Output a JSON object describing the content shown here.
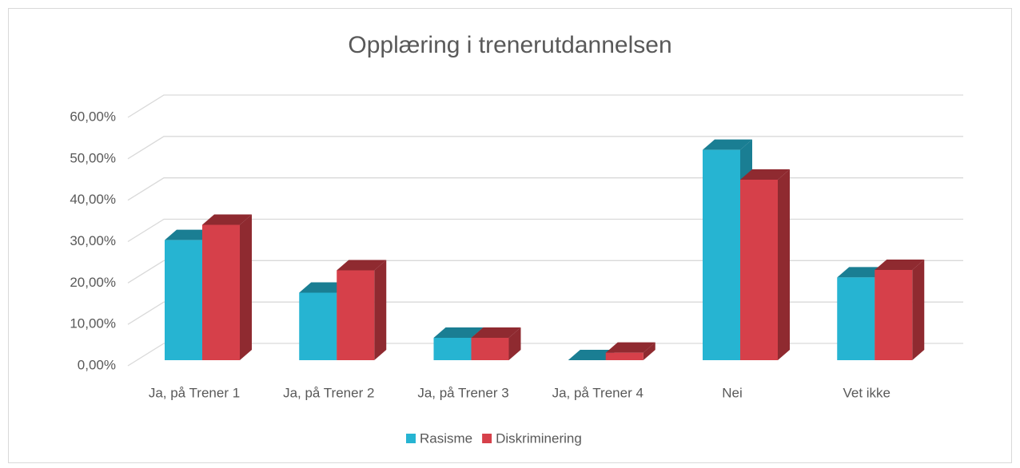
{
  "chart_data": {
    "type": "bar3d",
    "title": "Opplæring i trenerutdannelsen",
    "categories": [
      "Ja, på Trener 1",
      "Ja, på Trener 2",
      "Ja, på Trener 3",
      "Ja, på Trener 4",
      "Nei",
      "Vet ikke"
    ],
    "series": [
      {
        "name": "Rasisme",
        "color": "#26b4d2",
        "side_color": "#1a7e93",
        "values": [
          29,
          16.3,
          5.4,
          0,
          50.8,
          20
        ]
      },
      {
        "name": "Diskriminering",
        "color": "#d6404a",
        "side_color": "#8f2a30",
        "values": [
          32.7,
          21.7,
          5.4,
          1.8,
          43.6,
          21.8
        ]
      }
    ],
    "ylim": [
      0,
      60
    ],
    "yticks": [
      {
        "value": 0,
        "label": "0,00%"
      },
      {
        "value": 10,
        "label": "10,00%"
      },
      {
        "value": 20,
        "label": "20,00%"
      },
      {
        "value": 30,
        "label": "30,00%"
      },
      {
        "value": 40,
        "label": "40,00%"
      },
      {
        "value": 50,
        "label": "50,00%"
      },
      {
        "value": 60,
        "label": "60,00%"
      }
    ],
    "grid": true,
    "legend": "bottom"
  }
}
